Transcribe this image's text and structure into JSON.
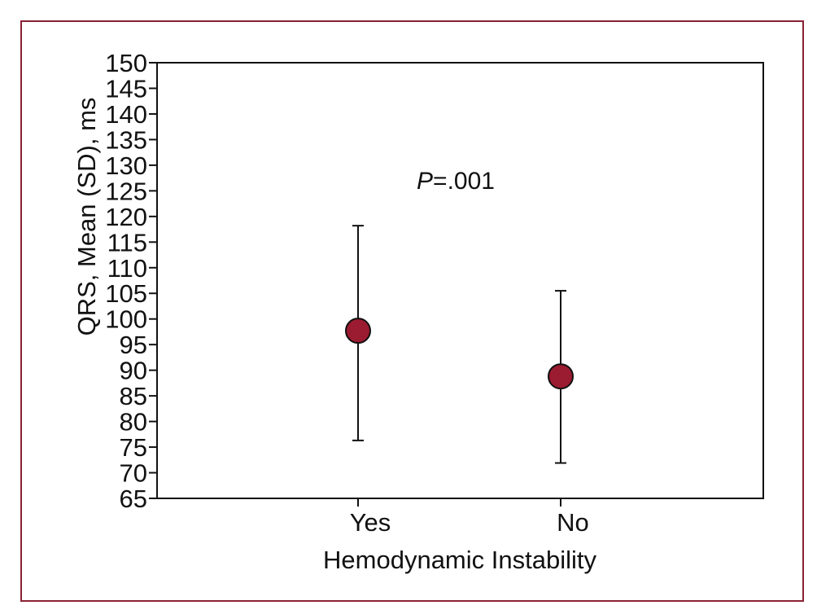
{
  "chart_data": {
    "type": "scatter",
    "title": "",
    "xlabel": "Hemodynamic Instability",
    "ylabel": "QRS, Mean (SD), ms",
    "categories": [
      "Yes",
      "No"
    ],
    "series": [
      {
        "values": [
          97.7,
          88.8
        ],
        "error_low": [
          76.3,
          71.9
        ],
        "error_high": [
          118.2,
          105.5
        ]
      }
    ],
    "ylim": [
      65,
      150
    ],
    "yticks": [
      65,
      70,
      75,
      80,
      85,
      90,
      95,
      100,
      105,
      110,
      115,
      120,
      125,
      130,
      135,
      140,
      145,
      150
    ],
    "annotation": {
      "italic": "P",
      "rest": "=.001"
    },
    "grid": false,
    "marker_color": "#9b1b30",
    "frame_color": "#8a2233"
  }
}
